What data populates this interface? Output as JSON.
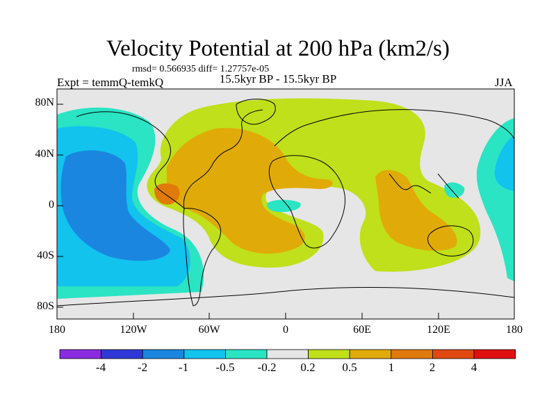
{
  "title": "Velocity Potential at 200 hPa (km2/s)",
  "stats": "rmsd= 0.566935 diff= 1.27757e-05",
  "experiment": "Expt = temmQ-temkQ",
  "period": "15.5kyr BP - 15.5kyr BP",
  "season": "JJA",
  "lat_labels": [
    "80N",
    "40N",
    "0",
    "40S",
    "80S"
  ],
  "lon_labels": [
    "180",
    "120W",
    "60W",
    "0",
    "60E",
    "120E",
    "180"
  ],
  "colorbar": {
    "labels": [
      "-4",
      "-2",
      "-1",
      "-0.5",
      "-0.2",
      "0.2",
      "0.5",
      "1",
      "2",
      "4"
    ],
    "colors": [
      "#8a2be2",
      "#2f38d6",
      "#1a86e0",
      "#12c3ee",
      "#2ae4c4",
      "#e6e6e6",
      "#bfe01a",
      "#e0ab08",
      "#e07a0a",
      "#e04a10",
      "#e01010"
    ]
  },
  "field_colors": {
    "neutral": "#e6e6e6",
    "cyan": "#2ae4c4",
    "lightblue": "#12c3ee",
    "blue": "#1a86e0",
    "yellowgreen": "#bfe01a",
    "gold": "#e0ab08",
    "orange": "#e07a0a"
  }
}
